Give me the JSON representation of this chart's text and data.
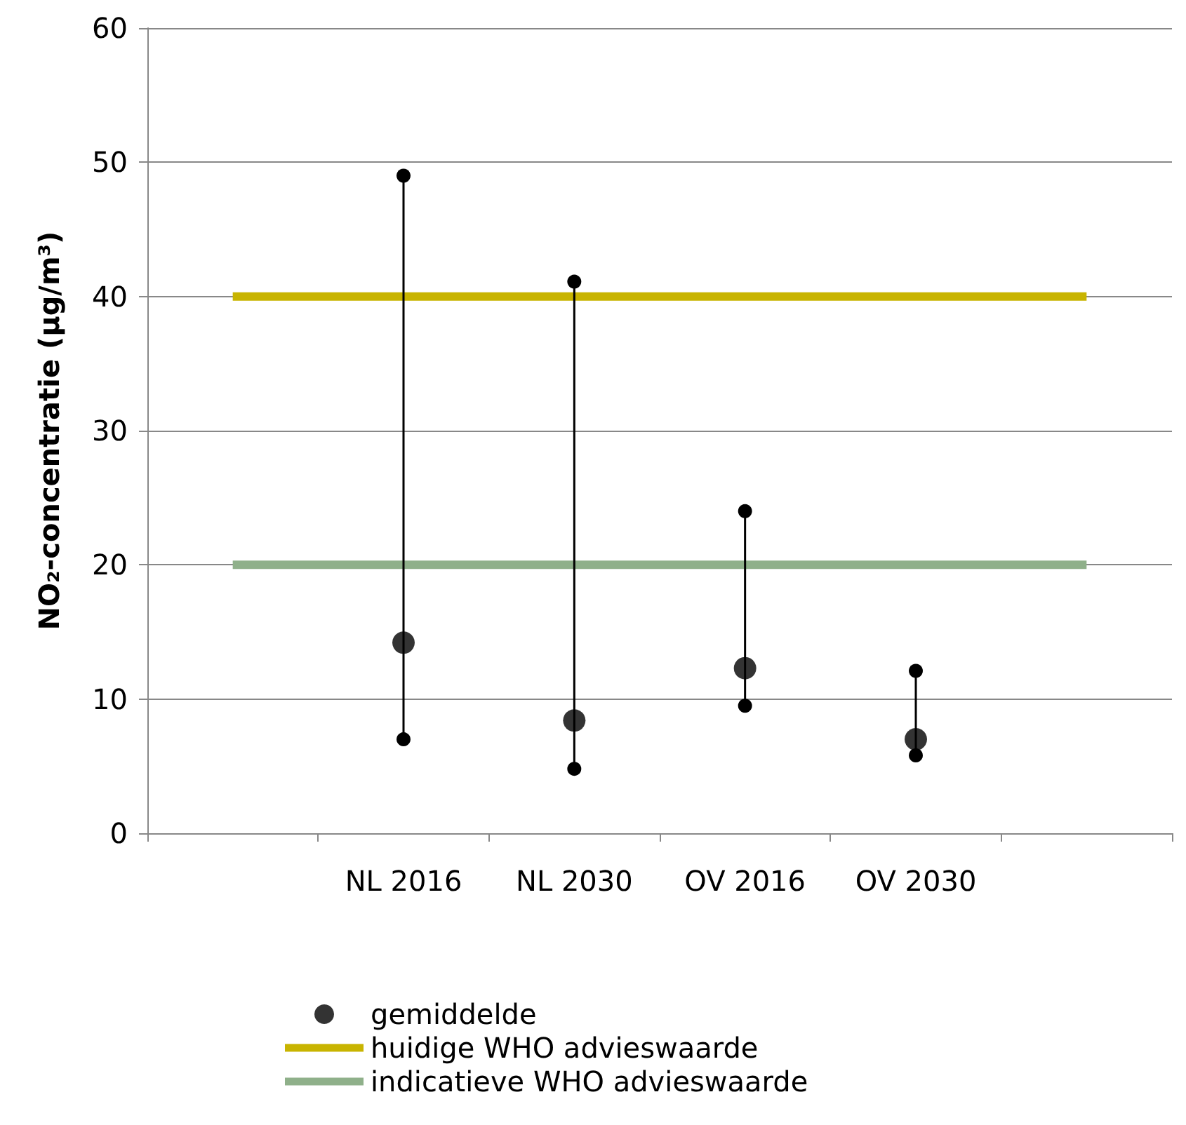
{
  "chart_data": {
    "type": "scatter",
    "ylabel": "NO₂-concentratie (µg/m³)",
    "categories": [
      null,
      "NL 2016",
      "NL 2030",
      "OV 2016",
      "OV 2030",
      null
    ],
    "series": [
      {
        "type": "line",
        "color": "#000000",
        "marker": "circle",
        "line_style": "solid",
        "x": [
          "NL 2016",
          "NL 2016",
          "NL 2016",
          "NL 2030",
          "NL 2030",
          "NL 2030",
          "OV 2016",
          "OV 2016",
          "OV 2016",
          "OV 2030",
          "OV 2030"
        ],
        "values": [
          7,
          49,
          null,
          4.8,
          41.1,
          null,
          9.5,
          24,
          null,
          5.8,
          12.1
        ]
      },
      {
        "name": "gemiddelde",
        "color": "#000000",
        "marker": "circle",
        "values": [
          null,
          14.2,
          8.4,
          12.3,
          7,
          null
        ]
      },
      {
        "name": "huidige WHO advieswaarde",
        "type": "line",
        "color": "#c8b400",
        "marker": "none",
        "line_style": "solid",
        "values": [
          40,
          40,
          40,
          40,
          40,
          40
        ]
      },
      {
        "name": "indicatieve WHO advieswaarde",
        "type": "line",
        "color": "#8fb08a",
        "marker": "none",
        "line_style": "solid",
        "values": [
          20,
          20,
          20,
          20,
          20,
          20
        ]
      }
    ],
    "ylim": [
      0,
      60
    ],
    "yticks": [
      0,
      10,
      20,
      30,
      40,
      50,
      60
    ],
    "grid": "y",
    "legend": "bottom"
  }
}
